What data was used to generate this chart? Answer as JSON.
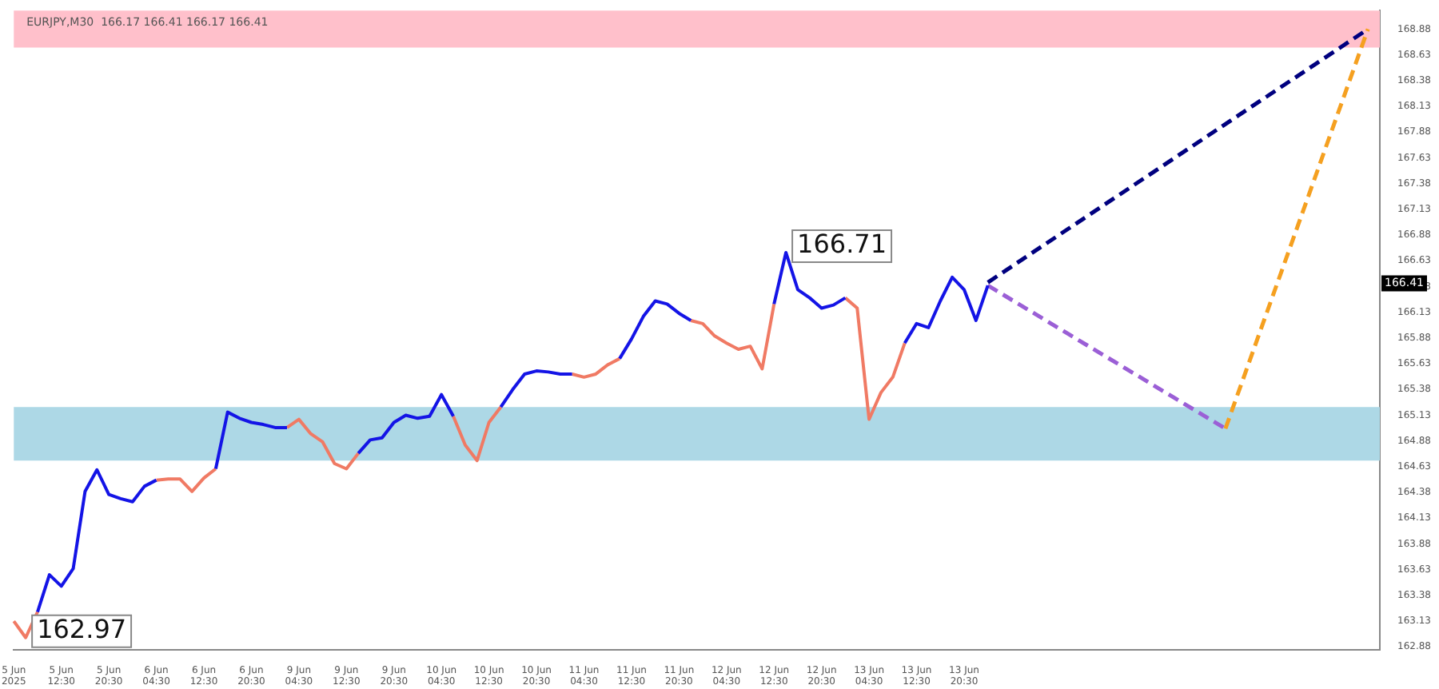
{
  "chart_data": {
    "type": "line",
    "title": "EURJPY,M30  166.17 166.41 166.17 166.41",
    "categories": [
      "5 Jun 2025",
      null,
      null,
      null,
      "5 Jun 12:30",
      null,
      null,
      null,
      "5 Jun 20:30",
      null,
      null,
      null,
      "6 Jun 04:30",
      null,
      null,
      null,
      "6 Jun 12:30",
      null,
      null,
      null,
      "6 Jun 20:30",
      null,
      null,
      null,
      "9 Jun 04:30",
      null,
      null,
      null,
      "9 Jun 12:30",
      null,
      null,
      null,
      "9 Jun 20:30",
      null,
      null,
      null,
      "10 Jun 04:30",
      null,
      null,
      null,
      "10 Jun 12:30",
      null,
      null,
      null,
      "10 Jun 20:30",
      null,
      null,
      null,
      "11 Jun 04:30",
      null,
      null,
      null,
      "11 Jun 12:30",
      null,
      null,
      null,
      "11 Jun 20:30",
      null,
      null,
      null,
      "12 Jun 04:30",
      null,
      null,
      null,
      "12 Jun 12:30",
      null,
      null,
      null,
      "12 Jun 20:30",
      null,
      null,
      null,
      "13 Jun 04:30",
      null,
      null,
      null,
      "13 Jun 12:30",
      null,
      null,
      null,
      "13 Jun 20:30",
      null,
      null,
      null,
      null,
      null,
      null,
      null,
      null,
      null,
      null,
      null,
      null,
      null,
      null,
      null,
      null,
      null,
      null,
      null,
      null,
      null,
      null,
      null,
      null,
      null,
      null,
      null,
      null,
      null,
      null,
      null,
      null,
      null,
      null,
      null
    ],
    "series": [
      {
        "color": "#1414e6",
        "values": [
          null,
          null,
          163.22,
          163.58,
          163.47,
          163.64,
          164.39,
          164.6,
          164.36,
          164.32,
          164.29,
          164.44,
          164.5,
          null,
          null,
          null,
          null,
          164.61,
          165.16,
          165.1,
          165.06,
          165.04,
          165.01,
          165.01,
          null,
          null,
          null,
          null,
          null,
          164.76,
          164.89,
          164.91,
          165.06,
          165.13,
          165.1,
          165.12,
          165.33,
          165.12,
          null,
          null,
          null,
          165.21,
          165.38,
          165.53,
          165.56,
          165.55,
          165.53,
          165.53,
          null,
          null,
          null,
          165.68,
          165.87,
          166.09,
          166.24,
          166.21,
          166.12,
          166.05,
          null,
          null,
          null,
          null,
          null,
          null,
          166.21,
          166.71,
          166.35,
          166.27,
          166.17,
          166.2,
          166.27,
          null,
          null,
          null,
          null,
          165.83,
          166.02,
          165.98,
          166.24,
          166.47,
          166.35,
          166.05,
          166.39,
          null,
          null,
          null,
          null,
          null,
          null,
          null,
          null,
          null,
          null,
          null,
          null,
          null,
          null,
          null,
          null,
          null,
          null,
          null,
          null,
          null,
          null,
          null,
          null,
          null,
          null,
          null,
          null,
          null,
          null,
          null,
          null,
          null
        ]
      },
      {
        "color": "#f07a64",
        "values": [
          163.13,
          162.97,
          163.22,
          null,
          null,
          null,
          null,
          null,
          null,
          null,
          null,
          null,
          164.5,
          164.51,
          164.51,
          164.39,
          164.52,
          164.61,
          null,
          null,
          null,
          null,
          null,
          165.01,
          165.09,
          164.95,
          164.87,
          164.66,
          164.61,
          164.76,
          null,
          null,
          null,
          null,
          null,
          null,
          null,
          165.12,
          164.84,
          164.69,
          165.06,
          165.21,
          null,
          null,
          null,
          null,
          null,
          165.53,
          165.5,
          165.53,
          165.62,
          165.68,
          null,
          null,
          null,
          null,
          null,
          166.05,
          166.02,
          165.9,
          165.83,
          165.77,
          165.8,
          165.58,
          166.21,
          null,
          null,
          null,
          null,
          null,
          166.27,
          166.17,
          165.09,
          165.35,
          165.5,
          165.83,
          null,
          null,
          null,
          null,
          null,
          null,
          null,
          null,
          null,
          null,
          null,
          null,
          null,
          null,
          null,
          null,
          null,
          null,
          null,
          null,
          null,
          null,
          null,
          null,
          null,
          null,
          null,
          null,
          null,
          null,
          null,
          null,
          null,
          null,
          null,
          null,
          null,
          null,
          null,
          null
        ]
      },
      {
        "color": "#00007f",
        "line_style": "dashed",
        "values": [
          null,
          null,
          null,
          null,
          null,
          null,
          null,
          null,
          null,
          null,
          null,
          null,
          null,
          null,
          null,
          null,
          null,
          null,
          null,
          null,
          null,
          null,
          null,
          null,
          null,
          null,
          null,
          null,
          null,
          null,
          null,
          null,
          null,
          null,
          null,
          null,
          null,
          null,
          null,
          null,
          null,
          null,
          null,
          null,
          null,
          null,
          null,
          null,
          null,
          null,
          null,
          null,
          null,
          null,
          null,
          null,
          null,
          null,
          null,
          null,
          null,
          null,
          null,
          null,
          null,
          null,
          null,
          null,
          null,
          null,
          null,
          null,
          null,
          null,
          null,
          null,
          null,
          null,
          null,
          null,
          null,
          null,
          166.42,
          null,
          null,
          null,
          null,
          null,
          null,
          null,
          null,
          null,
          null,
          null,
          null,
          null,
          null,
          null,
          null,
          null,
          null,
          null,
          null,
          null,
          null,
          null,
          null,
          null,
          null,
          null,
          null,
          null,
          null,
          null,
          168.88,
          null
        ]
      },
      {
        "color": "#9b5fd6",
        "line_style": "dashed",
        "values": [
          null,
          null,
          null,
          null,
          null,
          null,
          null,
          null,
          null,
          null,
          null,
          null,
          null,
          null,
          null,
          null,
          null,
          null,
          null,
          null,
          null,
          null,
          null,
          null,
          null,
          null,
          null,
          null,
          null,
          null,
          null,
          null,
          null,
          null,
          null,
          null,
          null,
          null,
          null,
          null,
          null,
          null,
          null,
          null,
          null,
          null,
          null,
          null,
          null,
          null,
          null,
          null,
          null,
          null,
          null,
          null,
          null,
          null,
          null,
          null,
          null,
          null,
          null,
          null,
          null,
          null,
          null,
          null,
          null,
          null,
          null,
          null,
          null,
          null,
          null,
          null,
          null,
          null,
          null,
          null,
          null,
          null,
          166.39,
          null,
          null,
          null,
          null,
          null,
          null,
          null,
          null,
          null,
          null,
          null,
          null,
          null,
          null,
          null,
          null,
          null,
          null,
          null,
          165.0,
          null,
          null,
          null,
          null,
          null,
          null,
          null,
          null,
          null,
          null,
          null,
          null,
          null
        ]
      },
      {
        "color": "#f5a020",
        "line_style": "dashed",
        "values": [
          null,
          null,
          null,
          null,
          null,
          null,
          null,
          null,
          null,
          null,
          null,
          null,
          null,
          null,
          null,
          null,
          null,
          null,
          null,
          null,
          null,
          null,
          null,
          null,
          null,
          null,
          null,
          null,
          null,
          null,
          null,
          null,
          null,
          null,
          null,
          null,
          null,
          null,
          null,
          null,
          null,
          null,
          null,
          null,
          null,
          null,
          null,
          null,
          null,
          null,
          null,
          null,
          null,
          null,
          null,
          null,
          null,
          null,
          null,
          null,
          null,
          null,
          null,
          null,
          null,
          null,
          null,
          null,
          null,
          null,
          null,
          null,
          null,
          null,
          null,
          null,
          null,
          null,
          null,
          null,
          null,
          null,
          null,
          null,
          null,
          null,
          null,
          null,
          null,
          null,
          null,
          null,
          null,
          null,
          null,
          null,
          null,
          null,
          null,
          null,
          null,
          null,
          165.0,
          null,
          null,
          null,
          null,
          null,
          null,
          null,
          null,
          null,
          null,
          null,
          168.88,
          null
        ]
      }
    ],
    "ylim": [
      162.85,
      169.06
    ],
    "yticks": [
      162.88,
      163.13,
      163.38,
      163.63,
      163.88,
      164.13,
      164.38,
      164.63,
      164.88,
      165.13,
      165.38,
      165.63,
      165.88,
      166.13,
      166.38,
      166.63,
      166.88,
      167.13,
      167.38,
      167.63,
      167.88,
      168.13,
      168.38,
      168.63,
      168.88
    ],
    "bands": [
      {
        "axis": "y",
        "from": 168.7,
        "to": 169.06,
        "color": "#ffc0cb"
      },
      {
        "axis": "y",
        "from": 164.69,
        "to": 165.21,
        "color": "#add8e6"
      }
    ],
    "annotations": [
      "166.71",
      "162.97",
      "166.41"
    ],
    "marker": "none",
    "line_style": "solid",
    "grid": false,
    "legend": false
  }
}
